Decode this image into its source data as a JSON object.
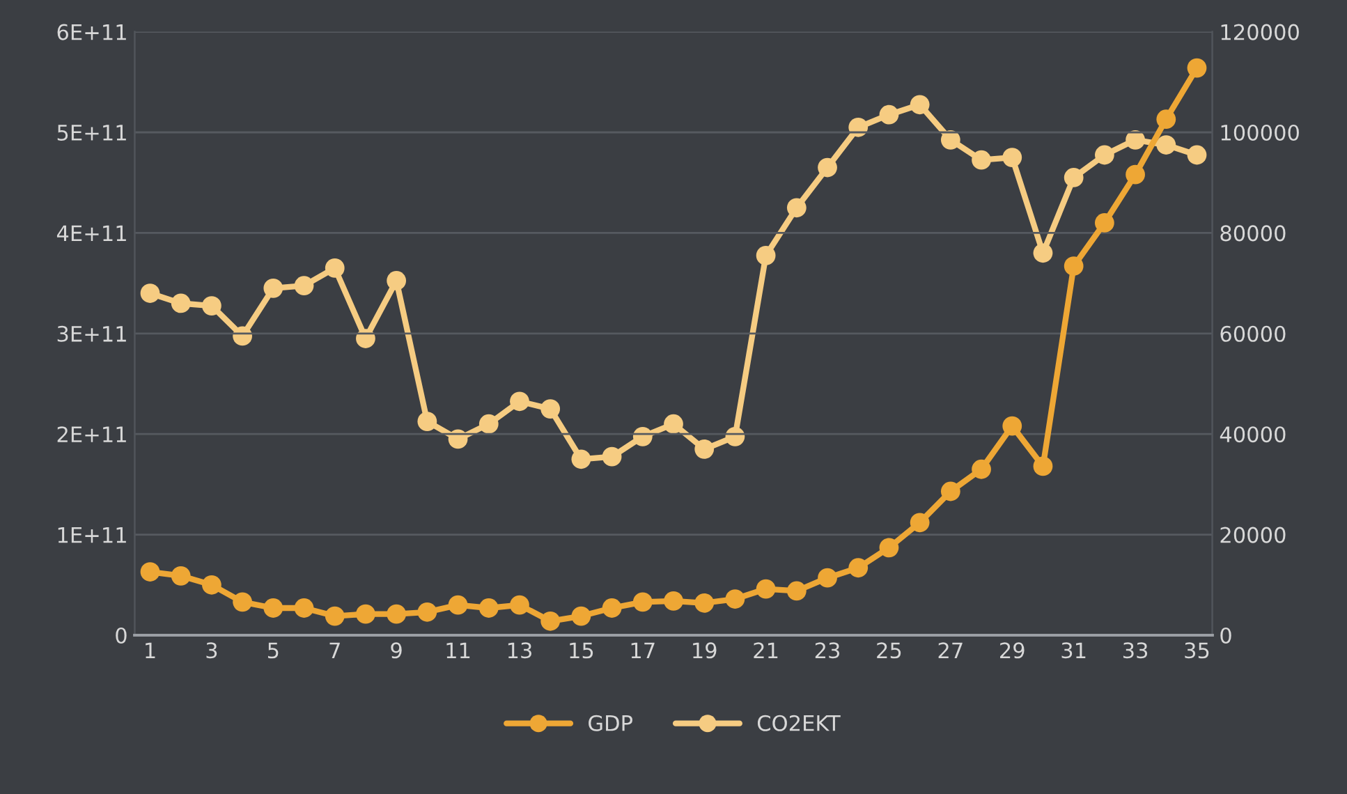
{
  "chart_data": {
    "type": "line",
    "x": [
      1,
      2,
      3,
      4,
      5,
      6,
      7,
      8,
      9,
      10,
      11,
      12,
      13,
      14,
      15,
      16,
      17,
      18,
      19,
      20,
      21,
      22,
      23,
      24,
      25,
      26,
      27,
      28,
      29,
      30,
      31,
      32,
      33,
      34,
      35
    ],
    "xlim": [
      0.5,
      35.5
    ],
    "xticks": [
      1,
      3,
      5,
      7,
      9,
      11,
      13,
      15,
      17,
      19,
      21,
      23,
      25,
      27,
      29,
      31,
      33,
      35
    ],
    "ylim": [
      0,
      600000000000
    ],
    "yticks": [
      0,
      {
        "value": 100000000000,
        "label": "1E+11"
      },
      {
        "value": 200000000000,
        "label": "2E+11"
      },
      {
        "value": 300000000000,
        "label": "3E+11"
      },
      {
        "value": 400000000000,
        "label": "4E+11"
      },
      {
        "value": 500000000000,
        "label": "5E+11"
      },
      {
        "value": 600000000000,
        "label": "6E+11"
      }
    ],
    "y2lim": [
      0,
      120000
    ],
    "y2ticks": [
      0,
      20000,
      40000,
      60000,
      80000,
      100000,
      120000
    ],
    "grid": "y",
    "legend": "bottom",
    "marker": "circle",
    "line_style": "solid",
    "series": [
      {
        "name": "GDP",
        "color": "#eea735",
        "values": [
          63000000000,
          59000000000,
          50000000000,
          33000000000,
          27000000000,
          27000000000,
          19000000000,
          21000000000,
          21000000000,
          23000000000,
          30000000000,
          27000000000,
          30000000000,
          14000000000,
          19000000000,
          27000000000,
          33000000000,
          34000000000,
          32000000000,
          36000000000,
          46000000000,
          44000000000,
          57000000000,
          67000000000,
          87000000000,
          112000000000,
          143000000000,
          165000000000,
          208000000000,
          168000000000,
          367000000000,
          410000000000,
          458000000000,
          513000000000,
          564000000000
        ]
      },
      {
        "name": "CO2EKT",
        "color": "#f6cc82",
        "axis": "y2",
        "values": [
          68000,
          66000,
          65500,
          59500,
          69000,
          69500,
          73000,
          59000,
          70500,
          42500,
          39000,
          42000,
          46500,
          45000,
          35000,
          35500,
          39500,
          42000,
          37000,
          39500,
          75500,
          85000,
          93000,
          101000,
          103500,
          105500,
          98500,
          94500,
          95000,
          76000,
          91000,
          95500,
          98500,
          97500,
          95500
        ]
      }
    ]
  }
}
